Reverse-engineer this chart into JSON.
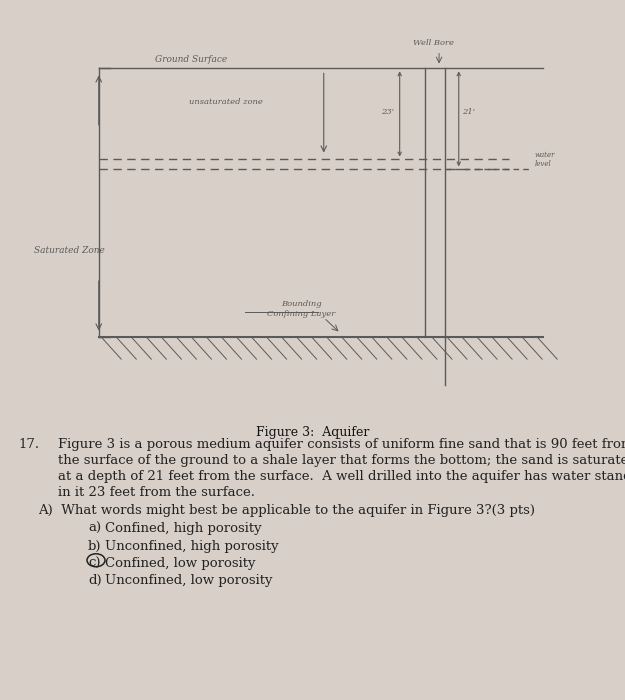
{
  "bg_color": "#d8d0c8",
  "fig_title": "Figure 3:  Aquifer",
  "question_number": "17.",
  "question_text_line1": "Figure 3 is a porous medium aquifer consists of uniform fine sand that is 90 feet from",
  "question_text_line2": "the surface of the ground to a shale layer that forms the bottom; the sand is saturated",
  "question_text_line3": "at a depth of 21 feet from the surface.  A well drilled into the aquifer has water standing",
  "question_text_line4": "in it 23 feet from the surface.",
  "sub_question": "A)  What words might best be applicable to the aquifer in Figure 3?(3 pts)",
  "choices": [
    {
      "label": "a)",
      "text": "Confined, high porosity",
      "circled": false
    },
    {
      "label": "b)",
      "text": "Unconfined, high porosity",
      "circled": false
    },
    {
      "label": "c)",
      "text": "Confined, low porosity",
      "circled": true
    },
    {
      "label": "d)",
      "text": "Unconfined, low porosity",
      "circled": false
    }
  ],
  "diagram": {
    "ground_surface_label": "Ground Surface",
    "unsaturated_zone_label": "unsaturated zone",
    "saturated_zone_label": "Saturated Zone",
    "well_bore_label": "Well Bore",
    "water_level_label": "water\nlevel",
    "bounding_label_top": "Bounding",
    "bounding_label_bot": "Confining Layer",
    "dim_23": "23'",
    "dim_21": "21'"
  }
}
